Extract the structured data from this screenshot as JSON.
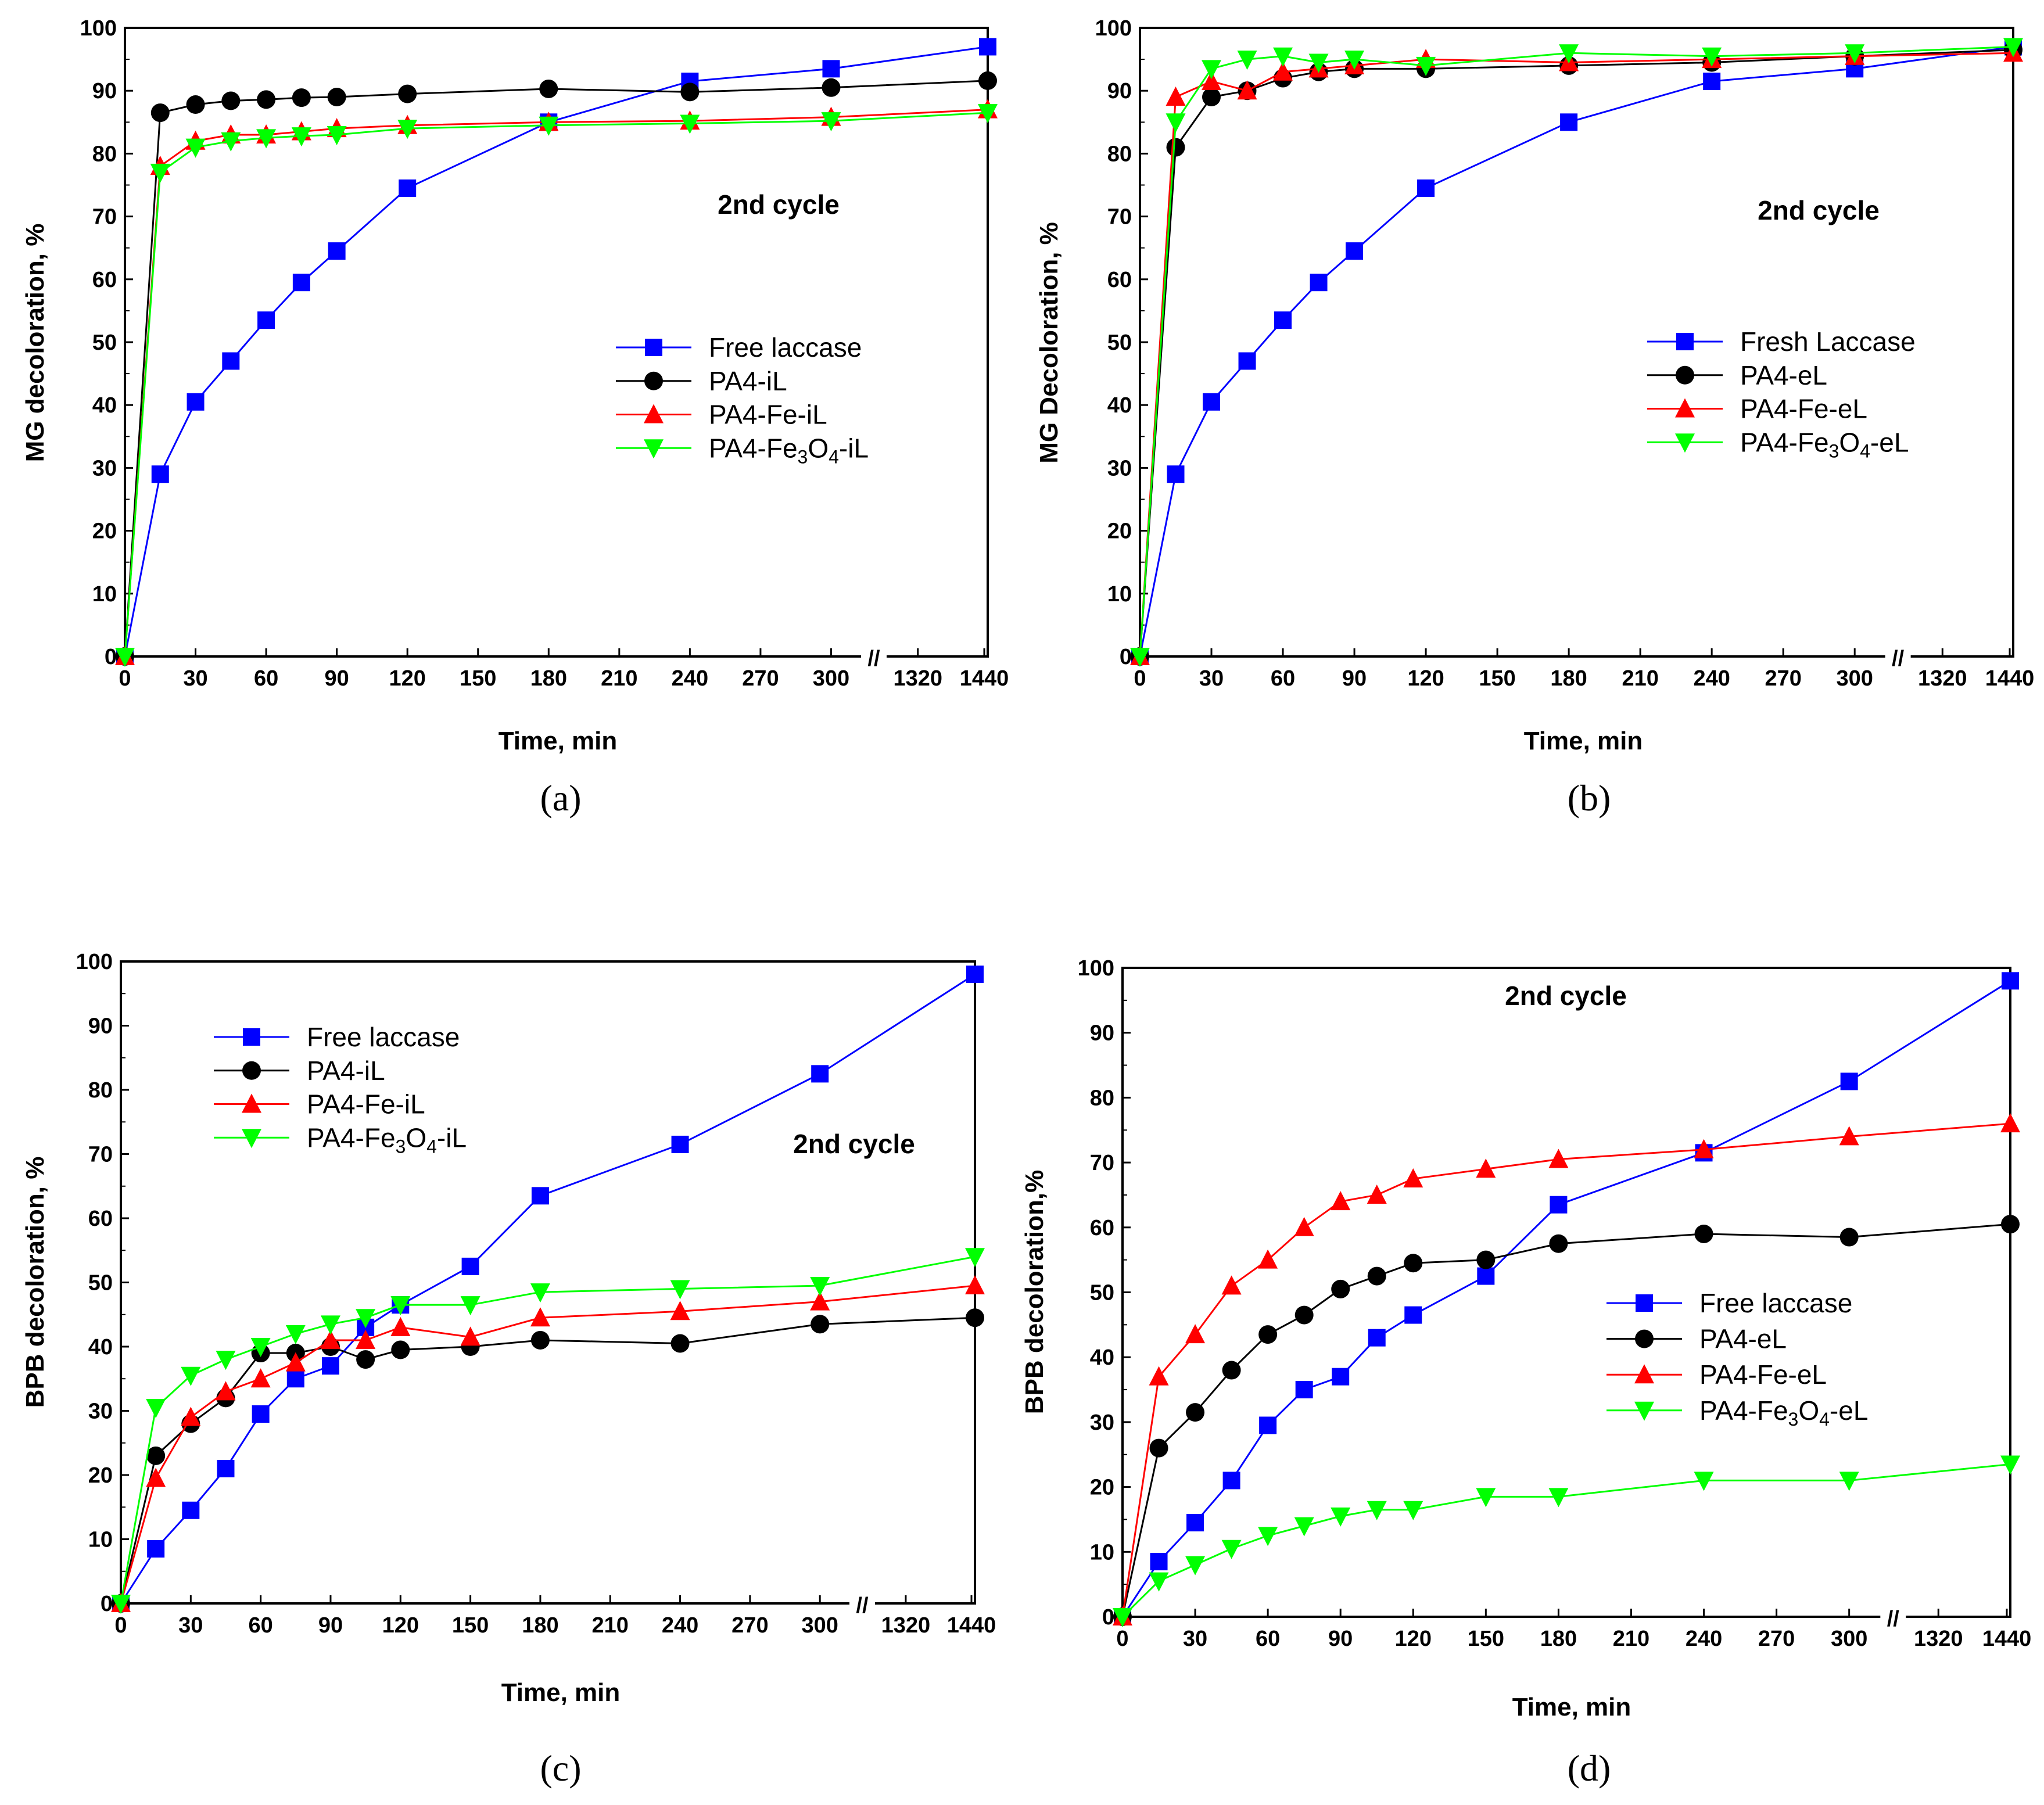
{
  "chart_data": [
    {
      "type": "line",
      "panel_label": "(a)",
      "xlabel": "Time, min",
      "ylabel": "MG decoloration, %",
      "annotation": "2nd cycle",
      "ylim": [
        0,
        100
      ],
      "yticks": [
        "0",
        "10",
        "20",
        "30",
        "40",
        "50",
        "60",
        "70",
        "80",
        "90",
        "100"
      ],
      "xticks": [
        "0",
        "30",
        "60",
        "90",
        "120",
        "150",
        "180",
        "210",
        "240",
        "270",
        "300",
        "1320",
        "1440"
      ],
      "axis_break": "//",
      "legend_position": "center-right",
      "series": [
        {
          "name": "Free laccase",
          "color": "#0000ff",
          "marker": "square",
          "x": [
            0,
            15,
            30,
            45,
            60,
            75,
            90,
            120,
            180,
            240,
            300,
            1440
          ],
          "values": [
            0,
            29,
            40.5,
            47,
            53.5,
            59.5,
            64.5,
            74.5,
            85,
            91.5,
            93.5,
            97
          ]
        },
        {
          "name": "PA4-iL",
          "color": "#000000",
          "marker": "circle",
          "x": [
            0,
            15,
            30,
            45,
            60,
            75,
            90,
            120,
            180,
            240,
            300,
            1440
          ],
          "values": [
            0,
            86.5,
            87.8,
            88.4,
            88.6,
            88.9,
            89,
            89.5,
            90.3,
            89.8,
            90.5,
            91.6
          ]
        },
        {
          "name": "PA4-Fe-iL",
          "color": "#ff0000",
          "marker": "triangle-up",
          "x": [
            0,
            15,
            30,
            45,
            60,
            75,
            90,
            120,
            180,
            240,
            300,
            1440
          ],
          "values": [
            0,
            78,
            82,
            83,
            83,
            83.5,
            84,
            84.5,
            85,
            85.2,
            85.8,
            87
          ]
        },
        {
          "name": "PA4-Fe3O4-iL",
          "color": "#00ff00",
          "marker": "triangle-down",
          "label_parts": [
            "PA4-Fe",
            "3",
            "O",
            "4",
            "-iL"
          ],
          "x": [
            0,
            15,
            30,
            45,
            60,
            75,
            90,
            120,
            180,
            240,
            300,
            1440
          ],
          "values": [
            0,
            77,
            81,
            82,
            82.5,
            82.8,
            83,
            84,
            84.5,
            84.8,
            85.2,
            86.5
          ]
        }
      ]
    },
    {
      "type": "line",
      "panel_label": "(b)",
      "xlabel": "Time, min",
      "ylabel": "MG Decoloration, %",
      "annotation": "2nd cycle",
      "ylim": [
        0,
        100
      ],
      "yticks": [
        "0",
        "10",
        "20",
        "30",
        "40",
        "50",
        "60",
        "70",
        "80",
        "90",
        "100"
      ],
      "xticks": [
        "0",
        "30",
        "60",
        "90",
        "120",
        "150",
        "180",
        "210",
        "240",
        "270",
        "300",
        "1320",
        "1440"
      ],
      "axis_break": "//",
      "legend_position": "center-right",
      "series": [
        {
          "name": "Fresh Laccase",
          "color": "#0000ff",
          "marker": "square",
          "x": [
            0,
            15,
            30,
            45,
            60,
            75,
            90,
            120,
            180,
            240,
            300,
            1440
          ],
          "values": [
            0,
            29,
            40.5,
            47,
            53.5,
            59.5,
            64.5,
            74.5,
            85,
            91.5,
            93.5,
            97
          ]
        },
        {
          "name": "PA4-eL",
          "color": "#000000",
          "marker": "circle",
          "x": [
            0,
            15,
            30,
            45,
            60,
            75,
            90,
            120,
            180,
            240,
            300,
            1440
          ],
          "values": [
            0,
            81,
            89,
            90,
            92,
            93,
            93.5,
            93.5,
            94,
            94.5,
            95.5,
            96.5
          ]
        },
        {
          "name": "PA4-Fe-eL",
          "color": "#ff0000",
          "marker": "triangle-up",
          "x": [
            0,
            15,
            30,
            45,
            60,
            75,
            90,
            120,
            180,
            240,
            300,
            1440
          ],
          "values": [
            0,
            89,
            91.5,
            90,
            93,
            93.5,
            94,
            95,
            94.5,
            95,
            95.5,
            96
          ]
        },
        {
          "name": "PA4-Fe3O4-eL",
          "color": "#00ff00",
          "marker": "triangle-down",
          "label_parts": [
            "PA4-Fe",
            "3",
            "O",
            "4",
            "-eL"
          ],
          "x": [
            0,
            15,
            30,
            45,
            60,
            75,
            90,
            120,
            180,
            240,
            300,
            1440
          ],
          "values": [
            0,
            85,
            93.5,
            95,
            95.5,
            94.5,
            95,
            94,
            96,
            95.5,
            96,
            97
          ]
        }
      ]
    },
    {
      "type": "line",
      "panel_label": "(c)",
      "xlabel": "Time, min",
      "ylabel": "BPB decoloration, %",
      "annotation": "2nd cycle",
      "ylim": [
        0,
        100
      ],
      "yticks": [
        "0",
        "10",
        "20",
        "30",
        "40",
        "50",
        "60",
        "70",
        "80",
        "90",
        "100"
      ],
      "xticks": [
        "0",
        "30",
        "60",
        "90",
        "120",
        "150",
        "180",
        "210",
        "240",
        "270",
        "300",
        "1320",
        "1440"
      ],
      "axis_break": "//",
      "legend_position": "top-left",
      "series": [
        {
          "name": "Free laccase",
          "color": "#0000ff",
          "marker": "square",
          "x": [
            0,
            15,
            30,
            45,
            60,
            75,
            90,
            105,
            120,
            150,
            180,
            240,
            300,
            1440
          ],
          "values": [
            0,
            8.5,
            14.5,
            21,
            29.5,
            35,
            37,
            43,
            46.5,
            52.5,
            63.5,
            71.5,
            82.5,
            98
          ]
        },
        {
          "name": "PA4-iL",
          "color": "#000000",
          "marker": "circle",
          "x": [
            0,
            15,
            30,
            45,
            60,
            75,
            90,
            105,
            120,
            150,
            180,
            240,
            300,
            1440
          ],
          "values": [
            0,
            23,
            28,
            32,
            39,
            39,
            40,
            38,
            39.5,
            40,
            41,
            40.5,
            43.5,
            44.5
          ]
        },
        {
          "name": "PA4-Fe-iL",
          "color": "#ff0000",
          "marker": "triangle-up",
          "x": [
            0,
            15,
            30,
            45,
            60,
            75,
            90,
            105,
            120,
            150,
            180,
            240,
            300,
            1440
          ],
          "values": [
            0,
            19.5,
            29,
            33,
            35,
            37.5,
            41,
            41,
            43,
            41.5,
            44.5,
            45.5,
            47,
            49.5
          ]
        },
        {
          "name": "PA4-Fe3O4-iL",
          "color": "#00ff00",
          "marker": "triangle-down",
          "label_parts": [
            "PA4-Fe",
            "3",
            "O",
            "4",
            "-iL"
          ],
          "x": [
            0,
            15,
            30,
            45,
            60,
            75,
            90,
            105,
            120,
            150,
            180,
            240,
            300,
            1440
          ],
          "values": [
            0,
            30.5,
            35.5,
            38,
            40,
            42,
            43.5,
            44.5,
            46.5,
            46.5,
            48.5,
            49,
            49.5,
            54
          ]
        }
      ]
    },
    {
      "type": "line",
      "panel_label": "(d)",
      "xlabel": "Time, min",
      "ylabel": "BPB decoloration,%",
      "annotation": "2nd cycle",
      "ylim": [
        0,
        100
      ],
      "yticks": [
        "0",
        "10",
        "20",
        "30",
        "40",
        "50",
        "60",
        "70",
        "80",
        "90",
        "100"
      ],
      "xticks": [
        "0",
        "30",
        "60",
        "90",
        "120",
        "150",
        "180",
        "210",
        "240",
        "270",
        "300",
        "1320",
        "1440"
      ],
      "axis_break": "//",
      "legend_position": "center-right",
      "series": [
        {
          "name": "Free laccase",
          "color": "#0000ff",
          "marker": "square",
          "x": [
            0,
            15,
            30,
            45,
            60,
            75,
            90,
            105,
            120,
            150,
            180,
            240,
            300,
            1440
          ],
          "values": [
            0,
            8.5,
            14.5,
            21,
            29.5,
            35,
            37,
            43,
            46.5,
            52.5,
            63.5,
            71.5,
            82.5,
            98
          ]
        },
        {
          "name": "PA4-eL",
          "color": "#000000",
          "marker": "circle",
          "x": [
            0,
            15,
            30,
            45,
            60,
            75,
            90,
            105,
            120,
            150,
            180,
            240,
            300,
            1440
          ],
          "values": [
            0,
            26,
            31.5,
            38,
            43.5,
            46.5,
            50.5,
            52.5,
            54.5,
            55,
            57.5,
            59,
            58.5,
            60.5
          ]
        },
        {
          "name": "PA4-Fe-eL",
          "color": "#ff0000",
          "marker": "triangle-up",
          "x": [
            0,
            15,
            30,
            45,
            60,
            75,
            90,
            105,
            120,
            150,
            180,
            240,
            300,
            1440
          ],
          "values": [
            0,
            37,
            43.5,
            51,
            55,
            60,
            64,
            65,
            67.5,
            69,
            70.5,
            72,
            74,
            76
          ]
        },
        {
          "name": "PA4-Fe3O4-eL",
          "color": "#00ff00",
          "marker": "triangle-down",
          "label_parts": [
            "PA4-Fe",
            "3",
            "O",
            "4",
            "-eL"
          ],
          "x": [
            0,
            15,
            30,
            45,
            60,
            75,
            90,
            105,
            120,
            150,
            180,
            240,
            300,
            1440
          ],
          "values": [
            0,
            5.5,
            8,
            10.5,
            12.5,
            14,
            15.5,
            16.5,
            16.5,
            18.5,
            18.5,
            21,
            21,
            23.5
          ]
        }
      ]
    }
  ]
}
